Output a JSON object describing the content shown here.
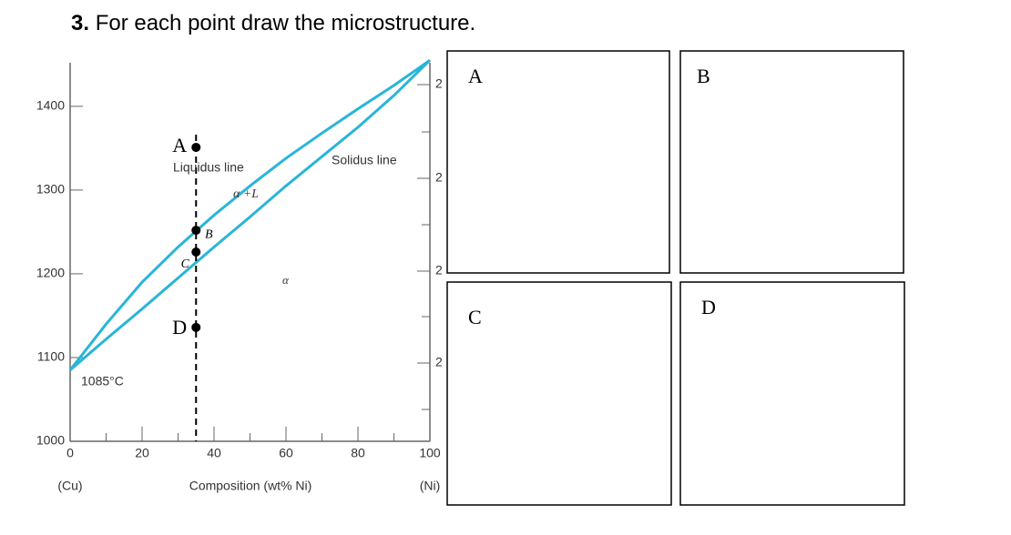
{
  "question": {
    "number": "3.",
    "text": "For each point draw the microstructure."
  },
  "chart_data": {
    "type": "line",
    "x": [
      0,
      10,
      20,
      30,
      40,
      50,
      60,
      70,
      80,
      90,
      100
    ],
    "series": [
      {
        "color": "#29b5d8",
        "values": [
          1085,
          1140,
          1190,
          1232,
          1270,
          1305,
          1338,
          1368,
          1397,
          1425,
          1455
        ]
      },
      {
        "color": "#29b5d8",
        "values": [
          1085,
          1122,
          1158,
          1195,
          1232,
          1268,
          1305,
          1340,
          1375,
          1413,
          1455
        ]
      }
    ],
    "xlim": [
      0,
      100
    ],
    "ylim": [
      1000,
      1452
    ],
    "xticks": [
      0,
      20,
      40,
      60,
      80,
      100
    ],
    "x_minor_ticks": [
      10,
      30,
      50,
      70,
      90
    ],
    "yticks": [
      1000,
      1100,
      1200,
      1300,
      1400
    ],
    "xlabel": "Composition (wt% Ni)",
    "x_left_label": "(Cu)",
    "x_right_label": "(Ni)",
    "points": [
      {
        "label": "A",
        "x": 35,
        "y": 1351
      },
      {
        "label": "B",
        "x": 35,
        "y": 1252
      },
      {
        "label": "C",
        "x": 35,
        "y": 1226
      },
      {
        "label": "D",
        "x": 35,
        "y": 1136
      }
    ],
    "annotations": [
      "Liquidus line",
      "Solidus line",
      "α +L",
      "α",
      "1085°C"
    ],
    "right_axis_labels": [
      "2",
      "2",
      "2",
      "2"
    ]
  },
  "boxes": [
    "A",
    "B",
    "C",
    "D"
  ]
}
